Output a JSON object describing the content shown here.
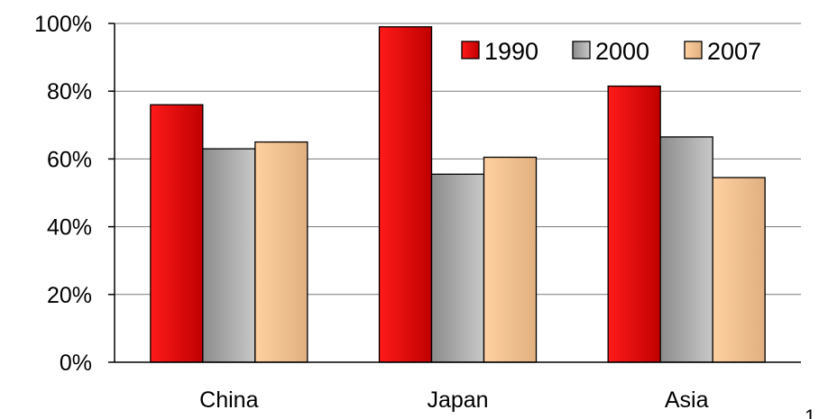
{
  "chart_data": {
    "type": "bar",
    "title": "",
    "xlabel": "",
    "ylabel": "",
    "categories": [
      "China",
      "Japan",
      "Asia"
    ],
    "series": [
      {
        "name": "1990",
        "values": [
          76,
          99,
          81.5
        ],
        "color": "#e00000"
      },
      {
        "name": "2000",
        "values": [
          63,
          55.5,
          66.5
        ],
        "color": "#a8a8a8"
      },
      {
        "name": "2007",
        "values": [
          65,
          60.5,
          54.5
        ],
        "color": "#f2c08e"
      }
    ],
    "ylim": [
      0,
      100
    ],
    "yticks": [
      "0%",
      "20%",
      "40%",
      "60%",
      "80%",
      "100%"
    ],
    "grid": true,
    "legend": "top-right"
  },
  "page_number": "1"
}
